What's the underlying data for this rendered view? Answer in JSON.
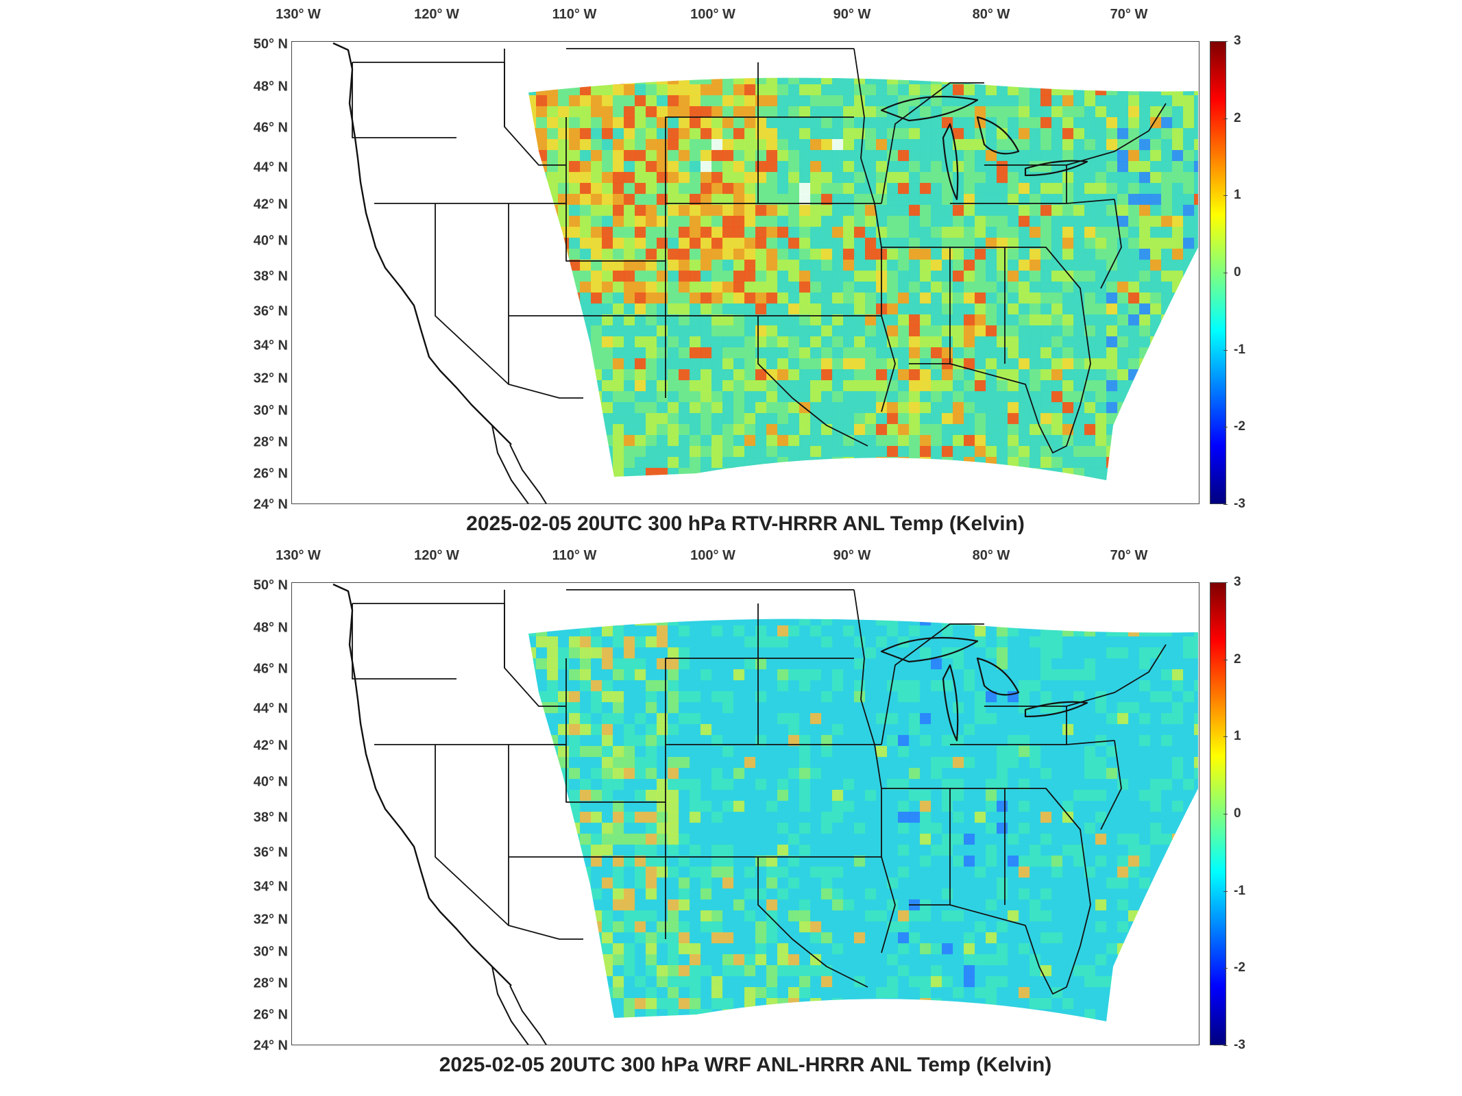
{
  "panels": [
    {
      "title": "2025-02-05 20UTC 300 hPa RTV-HRRR ANL Temp (Kelvin)",
      "field_colors": [
        "#3ad6c8",
        "#6ee88e",
        "#b6f04a",
        "#ffd82a",
        "#ff9a1a",
        "#ff4a12",
        "#ffffff",
        "#2a86ff"
      ],
      "colorbar": {
        "ticks": [
          "3",
          "2",
          "1",
          "0",
          "-1",
          "-2",
          "-3"
        ]
      }
    },
    {
      "title": "2025-02-05 20UTC 300 hPa WRF ANL-HRRR ANL Temp (Kelvin)",
      "field_colors": [
        "#2fd2e2",
        "#3ee6c0",
        "#8aee6e",
        "#c8f244",
        "#ffb83a",
        "#2a7cff"
      ],
      "colorbar": {
        "ticks": [
          "3",
          "2",
          "1",
          "0",
          "-1",
          "-2",
          "-3"
        ]
      }
    }
  ],
  "axes": {
    "lon_labels": [
      "130° W",
      "120° W",
      "110° W",
      "100° W",
      "90° W",
      "80° W",
      "70° W"
    ],
    "lat_labels": [
      "50° N",
      "48° N",
      "46° N",
      "44° N",
      "42° N",
      "40° N",
      "38° N",
      "36° N",
      "34° N",
      "32° N",
      "30° N",
      "28° N",
      "26° N",
      "24° N"
    ]
  }
}
